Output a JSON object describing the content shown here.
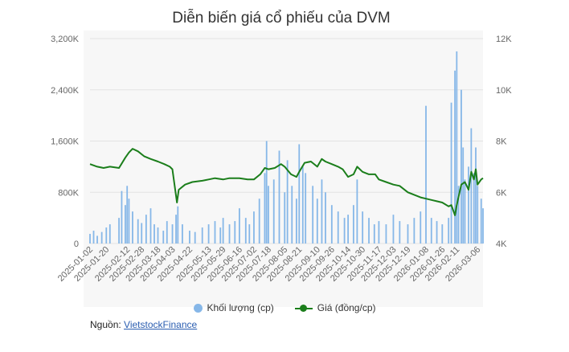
{
  "title": "Diễn biến giá cổ phiếu của DVM",
  "colors": {
    "volume": "#86b7e8",
    "price": "#1b7e1b",
    "axis_text": "#666666",
    "grid": "#e3e3e3"
  },
  "legend": {
    "volume_label": "Khối lượng (cp)",
    "price_label": "Giá (đồng/cp)"
  },
  "source": {
    "label": "Nguồn:",
    "link_text": "VietstockFinance"
  },
  "chart_data": {
    "type": "bar+line",
    "title": "Diễn biến giá cổ phiếu của DVM",
    "left_axis": {
      "name": "Khối lượng (cp)",
      "ylim": [
        0,
        3200000
      ],
      "ticks": [
        0,
        800000,
        1600000,
        2400000,
        3200000
      ],
      "tick_labels": [
        "0",
        "800K",
        "1,600K",
        "2,400K",
        "3,200K"
      ]
    },
    "right_axis": {
      "name": "Giá (đồng/cp)",
      "ylim": [
        4000,
        12000
      ],
      "ticks": [
        4000,
        6000,
        8000,
        10000,
        12000
      ],
      "tick_labels": [
        "4K",
        "6K",
        "8K",
        "10K",
        "12K"
      ]
    },
    "x_range": [
      "2025-01-02",
      "2026-03-12"
    ],
    "x_tick_labels": [
      "2025-01-02",
      "2025-01-20",
      "2025-02-12",
      "2025-02-28",
      "2025-03-18",
      "2025-04-03",
      "2025-04-22",
      "2025-05-13",
      "2025-05-29",
      "2025-06-16",
      "2025-07-02",
      "2025-07-18",
      "2025-08-05",
      "2025-08-21",
      "2025-09-10",
      "2025-09-26",
      "2025-10-14",
      "2025-10-30",
      "2025-11-17",
      "2025-12-03",
      "2025-12-19",
      "2026-01-08",
      "2026-01-26",
      "2026-02-11",
      "2026-03-06"
    ],
    "grid": true,
    "legend_position": "bottom",
    "series": [
      {
        "name": "Giá (đồng/cp)",
        "type": "line",
        "axis": "right",
        "points": [
          [
            "2025-01-02",
            7100
          ],
          [
            "2025-01-10",
            7000
          ],
          [
            "2025-01-17",
            6950
          ],
          [
            "2025-01-24",
            7000
          ],
          [
            "2025-02-03",
            6950
          ],
          [
            "2025-02-10",
            7350
          ],
          [
            "2025-02-14",
            7550
          ],
          [
            "2025-02-18",
            7700
          ],
          [
            "2025-02-24",
            7600
          ],
          [
            "2025-03-03",
            7400
          ],
          [
            "2025-03-10",
            7300
          ],
          [
            "2025-03-18",
            7200
          ],
          [
            "2025-03-25",
            7100
          ],
          [
            "2025-03-31",
            7000
          ],
          [
            "2025-04-03",
            6900
          ],
          [
            "2025-04-08",
            5600
          ],
          [
            "2025-04-10",
            6100
          ],
          [
            "2025-04-17",
            6300
          ],
          [
            "2025-04-25",
            6400
          ],
          [
            "2025-05-06",
            6450
          ],
          [
            "2025-05-13",
            6500
          ],
          [
            "2025-05-20",
            6550
          ],
          [
            "2025-05-29",
            6500
          ],
          [
            "2025-06-05",
            6550
          ],
          [
            "2025-06-16",
            6550
          ],
          [
            "2025-06-25",
            6500
          ],
          [
            "2025-07-02",
            6500
          ],
          [
            "2025-07-09",
            6700
          ],
          [
            "2025-07-14",
            6950
          ],
          [
            "2025-07-18",
            6900
          ],
          [
            "2025-07-25",
            6950
          ],
          [
            "2025-08-01",
            7100
          ],
          [
            "2025-08-05",
            7000
          ],
          [
            "2025-08-12",
            6700
          ],
          [
            "2025-08-18",
            6600
          ],
          [
            "2025-08-21",
            6800
          ],
          [
            "2025-08-27",
            7150
          ],
          [
            "2025-09-03",
            7200
          ],
          [
            "2025-09-10",
            7000
          ],
          [
            "2025-09-15",
            7300
          ],
          [
            "2025-09-19",
            7200
          ],
          [
            "2025-09-26",
            7100
          ],
          [
            "2025-10-03",
            7000
          ],
          [
            "2025-10-08",
            6900
          ],
          [
            "2025-10-14",
            6600
          ],
          [
            "2025-10-20",
            6700
          ],
          [
            "2025-10-24",
            7000
          ],
          [
            "2025-10-30",
            6800
          ],
          [
            "2025-11-06",
            6700
          ],
          [
            "2025-11-13",
            6700
          ],
          [
            "2025-11-17",
            6500
          ],
          [
            "2025-11-25",
            6400
          ],
          [
            "2025-12-03",
            6300
          ],
          [
            "2025-12-10",
            6250
          ],
          [
            "2025-12-19",
            6000
          ],
          [
            "2025-12-26",
            5900
          ],
          [
            "2026-01-02",
            5800
          ],
          [
            "2026-01-08",
            5750
          ],
          [
            "2026-01-14",
            5700
          ],
          [
            "2026-01-20",
            5650
          ],
          [
            "2026-01-26",
            5600
          ],
          [
            "2026-02-02",
            5450
          ],
          [
            "2026-02-05",
            5500
          ],
          [
            "2026-02-09",
            5100
          ],
          [
            "2026-02-11",
            5500
          ],
          [
            "2026-02-16",
            6300
          ],
          [
            "2026-02-20",
            6400
          ],
          [
            "2026-02-24",
            6100
          ],
          [
            "2026-02-27",
            6800
          ],
          [
            "2026-03-02",
            6500
          ],
          [
            "2026-03-04",
            6900
          ],
          [
            "2026-03-06",
            6300
          ],
          [
            "2026-03-10",
            6500
          ],
          [
            "2026-03-12",
            6550
          ]
        ]
      },
      {
        "name": "Khối lượng (cp)",
        "type": "bar",
        "axis": "left",
        "points": [
          [
            "2025-01-02",
            150000
          ],
          [
            "2025-01-06",
            200000
          ],
          [
            "2025-01-10",
            120000
          ],
          [
            "2025-01-15",
            180000
          ],
          [
            "2025-01-20",
            250000
          ],
          [
            "2025-01-24",
            300000
          ],
          [
            "2025-02-03",
            400000
          ],
          [
            "2025-02-06",
            820000
          ],
          [
            "2025-02-10",
            600000
          ],
          [
            "2025-02-12",
            900000
          ],
          [
            "2025-02-14",
            700000
          ],
          [
            "2025-02-18",
            500000
          ],
          [
            "2025-02-24",
            380000
          ],
          [
            "2025-02-28",
            320000
          ],
          [
            "2025-03-05",
            450000
          ],
          [
            "2025-03-10",
            550000
          ],
          [
            "2025-03-14",
            300000
          ],
          [
            "2025-03-18",
            250000
          ],
          [
            "2025-03-24",
            200000
          ],
          [
            "2025-03-28",
            350000
          ],
          [
            "2025-04-03",
            300000
          ],
          [
            "2025-04-07",
            450000
          ],
          [
            "2025-04-09",
            580000
          ],
          [
            "2025-04-14",
            300000
          ],
          [
            "2025-04-22",
            200000
          ],
          [
            "2025-04-28",
            180000
          ],
          [
            "2025-05-06",
            250000
          ],
          [
            "2025-05-13",
            300000
          ],
          [
            "2025-05-20",
            350000
          ],
          [
            "2025-05-26",
            250000
          ],
          [
            "2025-05-29",
            400000
          ],
          [
            "2025-06-05",
            300000
          ],
          [
            "2025-06-11",
            350000
          ],
          [
            "2025-06-16",
            550000
          ],
          [
            "2025-06-23",
            400000
          ],
          [
            "2025-06-27",
            300000
          ],
          [
            "2025-07-02",
            500000
          ],
          [
            "2025-07-08",
            700000
          ],
          [
            "2025-07-14",
            1100000
          ],
          [
            "2025-07-16",
            1600000
          ],
          [
            "2025-07-18",
            900000
          ],
          [
            "2025-07-24",
            1000000
          ],
          [
            "2025-07-30",
            1450000
          ],
          [
            "2025-08-05",
            800000
          ],
          [
            "2025-08-08",
            1300000
          ],
          [
            "2025-08-13",
            900000
          ],
          [
            "2025-08-18",
            700000
          ],
          [
            "2025-08-21",
            1550000
          ],
          [
            "2025-08-25",
            1200000
          ],
          [
            "2025-08-28",
            1100000
          ],
          [
            "2025-09-05",
            900000
          ],
          [
            "2025-09-10",
            700000
          ],
          [
            "2025-09-15",
            1000000
          ],
          [
            "2025-09-19",
            800000
          ],
          [
            "2025-09-26",
            600000
          ],
          [
            "2025-10-03",
            500000
          ],
          [
            "2025-10-10",
            400000
          ],
          [
            "2025-10-14",
            450000
          ],
          [
            "2025-10-20",
            600000
          ],
          [
            "2025-10-24",
            1000000
          ],
          [
            "2025-10-30",
            500000
          ],
          [
            "2025-11-06",
            400000
          ],
          [
            "2025-11-12",
            300000
          ],
          [
            "2025-11-17",
            350000
          ],
          [
            "2025-11-25",
            300000
          ],
          [
            "2025-12-03",
            450000
          ],
          [
            "2025-12-10",
            350000
          ],
          [
            "2025-12-19",
            300000
          ],
          [
            "2025-12-26",
            400000
          ],
          [
            "2026-01-02",
            500000
          ],
          [
            "2026-01-08",
            2150000
          ],
          [
            "2026-01-14",
            400000
          ],
          [
            "2026-01-20",
            350000
          ],
          [
            "2026-01-26",
            300000
          ],
          [
            "2026-02-02",
            400000
          ],
          [
            "2026-02-05",
            2200000
          ],
          [
            "2026-02-09",
            2700000
          ],
          [
            "2026-02-11",
            3000000
          ],
          [
            "2026-02-13",
            900000
          ],
          [
            "2026-02-16",
            2400000
          ],
          [
            "2026-02-18",
            1500000
          ],
          [
            "2026-02-20",
            1000000
          ],
          [
            "2026-02-24",
            1200000
          ],
          [
            "2026-02-27",
            1800000
          ],
          [
            "2026-03-02",
            1100000
          ],
          [
            "2026-03-04",
            1500000
          ],
          [
            "2026-03-06",
            900000
          ],
          [
            "2026-03-10",
            700000
          ],
          [
            "2026-03-12",
            550000
          ]
        ]
      }
    ]
  }
}
